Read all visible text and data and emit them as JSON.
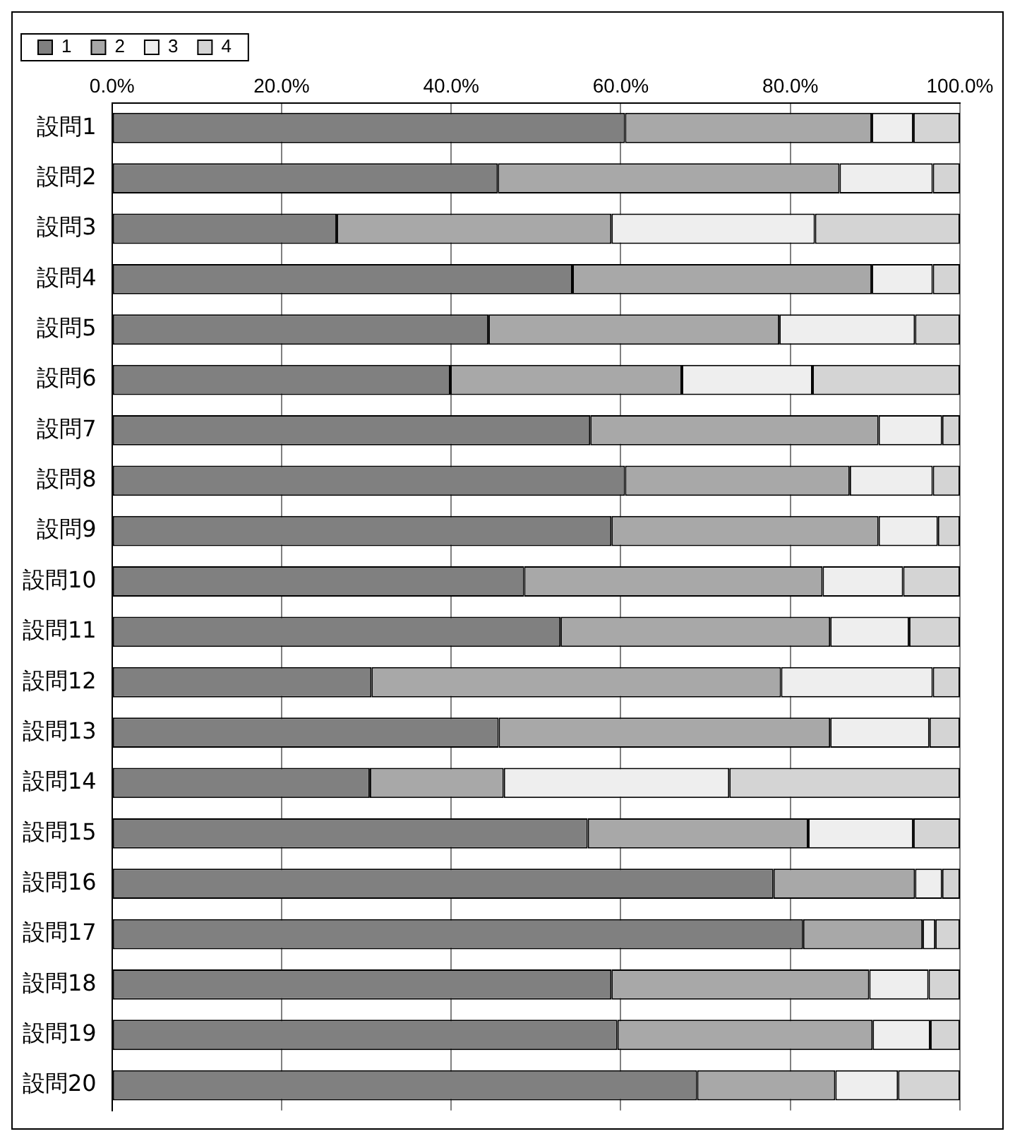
{
  "chart_data": {
    "type": "bar",
    "orientation": "horizontal",
    "stacked": true,
    "categories": [
      "設問1",
      "設問2",
      "設問3",
      "設問4",
      "設問5",
      "設問6",
      "設問7",
      "設問8",
      "設問9",
      "設問10",
      "設問11",
      "設問12",
      "設問13",
      "設問14",
      "設問15",
      "設問16",
      "設問17",
      "設問18",
      "設問19",
      "設問20"
    ],
    "series": [
      {
        "name": "1",
        "color": "#808080",
        "values": [
          60.5,
          45.5,
          26.5,
          54.3,
          44.4,
          39.9,
          56.4,
          60.5,
          58.9,
          48.6,
          52.9,
          30.6,
          45.6,
          30.4,
          56.1,
          78.0,
          81.5,
          58.9,
          59.6,
          69.0
        ]
      },
      {
        "name": "2",
        "color": "#a8a8a8",
        "values": [
          29.1,
          40.3,
          32.4,
          35.3,
          34.3,
          27.3,
          34.0,
          26.5,
          31.5,
          35.2,
          31.8,
          48.3,
          39.1,
          15.8,
          26.0,
          16.7,
          14.1,
          30.4,
          30.1,
          16.3
        ]
      },
      {
        "name": "3",
        "color": "#eeeeee",
        "values": [
          4.9,
          11.0,
          24.0,
          7.2,
          16.0,
          15.4,
          7.5,
          9.8,
          7.0,
          9.5,
          9.3,
          17.9,
          11.7,
          26.6,
          12.4,
          3.2,
          1.5,
          7.0,
          6.8,
          7.4
        ]
      },
      {
        "name": "4",
        "color": "#d4d4d4",
        "values": [
          5.5,
          3.2,
          17.1,
          3.2,
          5.3,
          17.4,
          2.1,
          3.2,
          2.6,
          6.7,
          6.0,
          3.2,
          3.6,
          27.2,
          5.5,
          2.1,
          2.9,
          3.7,
          3.5,
          7.3
        ]
      }
    ],
    "xlim": [
      0,
      100
    ],
    "xticks": [
      {
        "value": 0,
        "label": "0.0%"
      },
      {
        "value": 20,
        "label": "20.0%"
      },
      {
        "value": 40,
        "label": "40.0%"
      },
      {
        "value": 60,
        "label": "60.0%"
      },
      {
        "value": 80,
        "label": "80.0%"
      },
      {
        "value": 100,
        "label": "100.0%"
      }
    ],
    "grid": "x",
    "legend": "top left"
  }
}
